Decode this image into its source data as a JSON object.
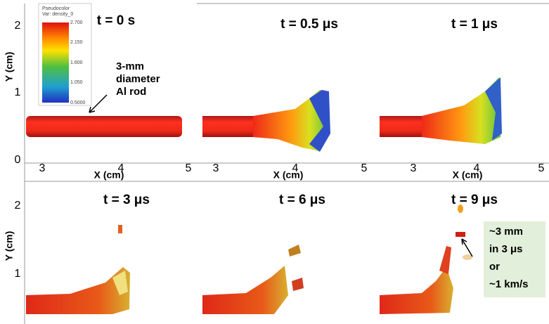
{
  "panels": [
    {
      "title": "t = 0 s"
    },
    {
      "title": "t = 0.5 μs"
    },
    {
      "title": "t = 1 μs"
    },
    {
      "title": "t = 3 μs"
    },
    {
      "title": "t = 6 μs"
    },
    {
      "title": "t = 9 μs"
    }
  ],
  "y_axis": {
    "label": "Y (cm)",
    "top_ticks": [
      "2",
      "1",
      "0"
    ],
    "bottom_ticks": [
      "2",
      "1"
    ]
  },
  "x_axis": {
    "label": "X (cm)",
    "ticks": [
      "3",
      "4",
      "5"
    ]
  },
  "legend": {
    "title": "Pseudocolor",
    "variable": "Var: density_0",
    "labels": [
      "2.700",
      "2.150",
      "1.600",
      "1.050",
      "0.5000"
    ]
  },
  "annotations": {
    "rod": [
      "3-mm",
      "diameter",
      "Al rod"
    ],
    "speed": [
      "~3 mm",
      "in 3 μs",
      "or",
      "~1 km/s"
    ]
  }
}
